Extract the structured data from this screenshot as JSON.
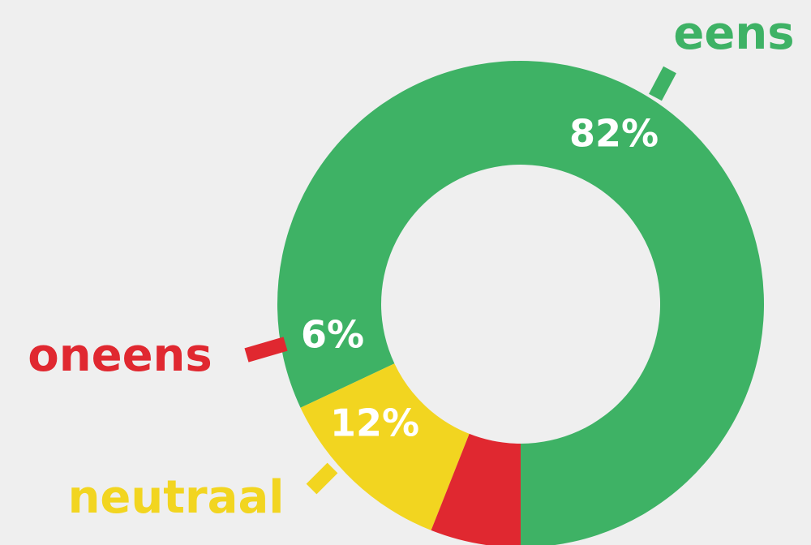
{
  "chart_data": {
    "type": "pie",
    "variant": "donut",
    "title": "",
    "start_angle_deg": 270,
    "direction": "counterclockwise",
    "slices": [
      {
        "label": "eens",
        "value": 82,
        "value_label": "82%",
        "color": "#3eb265"
      },
      {
        "label": "neutraal",
        "value": 12,
        "value_label": "12%",
        "color": "#f2d520"
      },
      {
        "label": "oneens",
        "value": 6,
        "value_label": "6%",
        "color": "#e02830"
      }
    ]
  }
}
